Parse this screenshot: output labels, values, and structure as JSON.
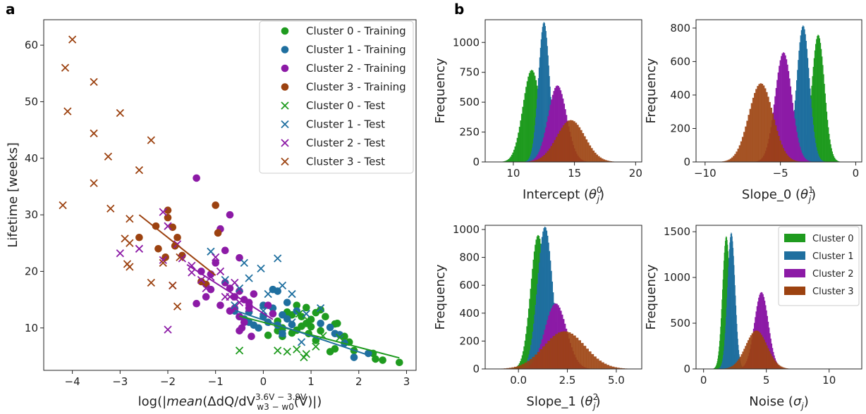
{
  "colors": {
    "c0": "#1f9b1f",
    "c1": "#1f6f9f",
    "c2": "#8c1aa6",
    "c3": "#9c4210"
  },
  "chart_data": [
    {
      "panel": "a",
      "type": "scatter",
      "xlabel": "log(|mean(ΔdQ/dV(V))|)",
      "xlabel_parts": {
        "pre": "log(|",
        "mean": "mean",
        "mid": "(ΔdQ/dV",
        "sup": "3.6V − 3.9V",
        "sub": "w3 − w0",
        "post": "(V)|)"
      },
      "ylabel": "Lifetime [weeks]",
      "xlim": [
        -4.6,
        3.2
      ],
      "ylim": [
        2.5,
        64.5
      ],
      "xticks": [
        -4,
        -3,
        -2,
        -1,
        0,
        1,
        2,
        3
      ],
      "xtick_labels": [
        "−4",
        "−3",
        "−2",
        "−1",
        "0",
        "1",
        "2",
        "3"
      ],
      "yticks": [
        10,
        20,
        30,
        40,
        50,
        60
      ],
      "legend_position": "top-right",
      "series": [
        {
          "name": "Cluster 0 - Training",
          "marker": "o",
          "color_key": "c0",
          "points": [
            [
              0.1,
              8.7
            ],
            [
              0.3,
              9.5
            ],
            [
              0.4,
              8.5
            ],
            [
              0.6,
              9.1
            ],
            [
              0.7,
              9.6
            ],
            [
              0.8,
              10.3
            ],
            [
              0.9,
              10.8
            ],
            [
              1.0,
              11.5
            ],
            [
              0.8,
              12.0
            ],
            [
              0.6,
              12.3
            ],
            [
              0.5,
              12.8
            ],
            [
              1.1,
              12.7
            ],
            [
              1.2,
              13.2
            ],
            [
              0.9,
              13.6
            ],
            [
              0.7,
              14.0
            ],
            [
              1.3,
              12.0
            ],
            [
              1.5,
              10.7
            ],
            [
              1.55,
              10.8
            ],
            [
              1.7,
              8.5
            ],
            [
              1.8,
              7.5
            ],
            [
              1.9,
              6.0
            ],
            [
              2.3,
              5.5
            ],
            [
              2.35,
              4.5
            ],
            [
              2.5,
              4.3
            ],
            [
              2.85,
              3.9
            ],
            [
              1.4,
              5.8
            ],
            [
              1.5,
              6.3
            ],
            [
              1.2,
              9.5
            ],
            [
              0.4,
              10.0
            ],
            [
              0.3,
              11.2
            ],
            [
              0.95,
              9.0
            ],
            [
              1.1,
              7.8
            ],
            [
              1.0,
              10.2
            ]
          ]
        },
        {
          "name": "Cluster 1 - Training",
          "marker": "o",
          "color_key": "c1",
          "points": [
            [
              -0.6,
              13.0
            ],
            [
              -0.5,
              12.0
            ],
            [
              -0.4,
              11.6
            ],
            [
              -0.3,
              11.0
            ],
            [
              -0.2,
              10.5
            ],
            [
              -0.1,
              10.0
            ],
            [
              0.0,
              12.0
            ],
            [
              0.1,
              11.0
            ],
            [
              0.2,
              13.5
            ],
            [
              0.3,
              10.5
            ],
            [
              0.4,
              12.3
            ],
            [
              0.5,
              11.6
            ],
            [
              0.6,
              10.6
            ],
            [
              0.7,
              13.0
            ],
            [
              0.2,
              16.8
            ],
            [
              0.3,
              16.5
            ],
            [
              0.5,
              14.5
            ],
            [
              1.2,
              10.8
            ],
            [
              1.4,
              10.1
            ],
            [
              1.5,
              9.0
            ],
            [
              1.6,
              8.8
            ],
            [
              1.7,
              7.3
            ],
            [
              1.9,
              4.8
            ],
            [
              2.2,
              5.5
            ],
            [
              -0.3,
              12.8
            ],
            [
              0.0,
              14.0
            ],
            [
              0.4,
              9.0
            ]
          ]
        },
        {
          "name": "Cluster 2 - Training",
          "marker": "o",
          "color_key": "c2",
          "points": [
            [
              -1.4,
              36.5
            ],
            [
              -0.7,
              30.0
            ],
            [
              -0.9,
              27.5
            ],
            [
              -0.8,
              23.7
            ],
            [
              -0.5,
              22.4
            ],
            [
              -1.0,
              21.5
            ],
            [
              -1.3,
              20.0
            ],
            [
              -1.1,
              19.5
            ],
            [
              -0.8,
              18.0
            ],
            [
              -0.7,
              17.0
            ],
            [
              -0.5,
              16.5
            ],
            [
              -0.6,
              15.5
            ],
            [
              -0.4,
              15.0
            ],
            [
              -0.3,
              14.5
            ],
            [
              -0.9,
              14.0
            ],
            [
              -0.6,
              13.5
            ],
            [
              -0.5,
              12.0
            ],
            [
              -0.4,
              11.0
            ],
            [
              -0.45,
              10.0
            ],
            [
              -0.5,
              9.5
            ],
            [
              -0.25,
              8.5
            ],
            [
              0.1,
              14.0
            ],
            [
              0.2,
              12.5
            ],
            [
              -1.4,
              14.3
            ],
            [
              -1.2,
              15.5
            ],
            [
              -1.1,
              16.8
            ],
            [
              -0.7,
              13.0
            ],
            [
              -0.3,
              13.5
            ],
            [
              -0.2,
              16.0
            ]
          ]
        },
        {
          "name": "Cluster 3 - Training",
          "marker": "o",
          "color_key": "c3",
          "points": [
            [
              -2.6,
              26.0
            ],
            [
              -2.25,
              28.0
            ],
            [
              -2.2,
              24.0
            ],
            [
              -2.0,
              30.8
            ],
            [
              -2.0,
              29.5
            ],
            [
              -1.9,
              27.8
            ],
            [
              -1.8,
              26.0
            ],
            [
              -1.7,
              22.8
            ],
            [
              -1.3,
              18.2
            ],
            [
              -1.2,
              17.7
            ],
            [
              -1.0,
              31.7
            ],
            [
              -0.95,
              26.8
            ],
            [
              -2.05,
              22.5
            ],
            [
              -1.85,
              24.5
            ]
          ]
        },
        {
          "name": "Cluster 0 - Test",
          "marker": "x",
          "color_key": "c0",
          "points": [
            [
              -0.5,
              6.0
            ],
            [
              0.3,
              6.0
            ],
            [
              0.5,
              5.8
            ],
            [
              0.7,
              6.2
            ],
            [
              0.9,
              5.4
            ],
            [
              0.85,
              4.8
            ],
            [
              1.1,
              6.7
            ],
            [
              1.25,
              8.6
            ],
            [
              1.6,
              8.3
            ],
            [
              0.75,
              12.5
            ],
            [
              0.95,
              11.2
            ]
          ]
        },
        {
          "name": "Cluster 1 - Test",
          "marker": "x",
          "color_key": "c1",
          "points": [
            [
              -1.1,
              23.5
            ],
            [
              -0.4,
              21.5
            ],
            [
              -0.05,
              20.5
            ],
            [
              0.3,
              22.3
            ],
            [
              -0.3,
              18.8
            ],
            [
              -0.8,
              18.5
            ],
            [
              0.4,
              17.5
            ],
            [
              0.6,
              16.0
            ],
            [
              -0.6,
              14.0
            ],
            [
              -0.5,
              17.0
            ],
            [
              0.1,
              16.0
            ],
            [
              0.9,
              12.5
            ],
            [
              0.4,
              9.0
            ],
            [
              0.8,
              7.5
            ],
            [
              1.2,
              13.5
            ],
            [
              0.0,
              13.0
            ],
            [
              0.6,
              11.0
            ]
          ]
        },
        {
          "name": "Cluster 2 - Test",
          "marker": "x",
          "color_key": "c2",
          "points": [
            [
              -3.0,
              23.2
            ],
            [
              -2.6,
              24.0
            ],
            [
              -2.1,
              30.5
            ],
            [
              -2.0,
              28.0
            ],
            [
              -1.8,
              24.8
            ],
            [
              -1.7,
              22.3
            ],
            [
              -1.5,
              19.8
            ],
            [
              -1.3,
              18.5
            ],
            [
              -1.2,
              17.0
            ],
            [
              -1.1,
              19.0
            ],
            [
              -0.9,
              20.0
            ],
            [
              -0.7,
              15.5
            ],
            [
              -0.5,
              14.5
            ],
            [
              -0.3,
              13.5
            ],
            [
              -2.1,
              22.0
            ],
            [
              -1.9,
              17.5
            ],
            [
              -2.0,
              9.7
            ],
            [
              -1.0,
              22.5
            ],
            [
              -0.6,
              18.0
            ],
            [
              -0.8,
              15.5
            ],
            [
              -1.5,
              21.0
            ]
          ]
        },
        {
          "name": "Cluster 3 - Test",
          "marker": "x",
          "color_key": "c3",
          "points": [
            [
              -4.0,
              61.0
            ],
            [
              -4.15,
              56.0
            ],
            [
              -3.55,
              53.5
            ],
            [
              -4.1,
              48.3
            ],
            [
              -3.0,
              48.0
            ],
            [
              -3.55,
              44.4
            ],
            [
              -2.35,
              43.2
            ],
            [
              -3.25,
              40.3
            ],
            [
              -3.55,
              35.6
            ],
            [
              -2.6,
              37.9
            ],
            [
              -4.2,
              31.7
            ],
            [
              -3.2,
              31.1
            ],
            [
              -2.8,
              29.3
            ],
            [
              -2.9,
              25.8
            ],
            [
              -2.8,
              25.0
            ],
            [
              -2.85,
              21.3
            ],
            [
              -2.8,
              20.8
            ],
            [
              -2.35,
              18.0
            ],
            [
              -2.1,
              21.5
            ],
            [
              -1.75,
              22.5
            ],
            [
              -1.8,
              13.8
            ],
            [
              -1.9,
              17.5
            ]
          ]
        }
      ],
      "fit_lines": [
        {
          "color_key": "c0",
          "points": [
            [
              -0.5,
              12.1
            ],
            [
              2.85,
              4.7
            ]
          ]
        },
        {
          "color_key": "c1",
          "points": [
            [
              -0.6,
              13.1
            ],
            [
              2.2,
              5.2
            ]
          ]
        },
        {
          "color_key": "c2",
          "points": [
            [
              -1.6,
              21.2
            ],
            [
              0.2,
              11.5
            ]
          ]
        },
        {
          "color_key": "c3",
          "points": [
            [
              -2.6,
              30.0
            ],
            [
              -1.0,
              19.3
            ]
          ]
        }
      ]
    },
    {
      "panel": "b",
      "type": "histogram",
      "legend": [
        "Cluster 0",
        "Cluster 1",
        "Cluster 2",
        "Cluster 3"
      ],
      "legend_position": "top-right (Noise panel)",
      "ylabel": "Frequency",
      "subplots": [
        {
          "xlabel": "Intercept",
          "sym": "θ",
          "sub": "j",
          "sup": "0",
          "xlim": [
            7.7,
            20.5
          ],
          "ylim": [
            0,
            1190
          ],
          "xticks": [
            10,
            15,
            20
          ],
          "yticks": [
            0,
            250,
            500,
            750,
            1000
          ],
          "clusters": [
            {
              "mean": 11.5,
              "std": 0.72,
              "peak": 770
            },
            {
              "mean": 12.5,
              "std": 0.45,
              "peak": 1170
            },
            {
              "mean": 13.6,
              "std": 0.75,
              "peak": 640
            },
            {
              "mean": 14.7,
              "std": 1.15,
              "peak": 350
            }
          ]
        },
        {
          "xlabel": "Slope_0",
          "sym": "θ",
          "sub": "j",
          "sup": "1",
          "xlim": [
            -10.6,
            0.4
          ],
          "ylim": [
            0,
            850
          ],
          "xticks": [
            -10,
            -5,
            0
          ],
          "xtick_labels": [
            "−10",
            "−5",
            "0"
          ],
          "yticks": [
            0,
            200,
            400,
            600,
            800
          ],
          "clusters": [
            {
              "mean": -2.5,
              "std": 0.42,
              "peak": 760
            },
            {
              "mean": -3.5,
              "std": 0.42,
              "peak": 815
            },
            {
              "mean": -4.8,
              "std": 0.55,
              "peak": 655
            },
            {
              "mean": -6.3,
              "std": 0.8,
              "peak": 470
            }
          ]
        },
        {
          "xlabel": "Slope_1",
          "sym": "θ",
          "sub": "j",
          "sup": "2",
          "xlim": [
            -1.7,
            6.3
          ],
          "ylim": [
            0,
            1030
          ],
          "xticks": [
            0.0,
            2.5,
            5.0
          ],
          "xtick_labels": [
            "0.0",
            "2.5",
            "5.0"
          ],
          "yticks": [
            0,
            200,
            400,
            600,
            800,
            1000
          ],
          "clusters": [
            {
              "mean": 1.0,
              "std": 0.38,
              "peak": 960
            },
            {
              "mean": 1.35,
              "std": 0.38,
              "peak": 1020
            },
            {
              "mean": 1.9,
              "std": 0.55,
              "peak": 470
            },
            {
              "mean": 2.35,
              "std": 1.05,
              "peak": 270
            }
          ]
        },
        {
          "xlabel": "Noise",
          "sym": "σ",
          "sub": "j",
          "sup": "",
          "xlim": [
            -0.6,
            12.6
          ],
          "ylim": [
            0,
            1570
          ],
          "xticks": [
            0,
            5,
            10
          ],
          "yticks": [
            0,
            500,
            1000,
            1500
          ],
          "clusters": [
            {
              "mean": 1.8,
              "std": 0.3,
              "peak": 1450
            },
            {
              "mean": 2.2,
              "std": 0.3,
              "peak": 1490
            },
            {
              "mean": 4.6,
              "std": 0.55,
              "peak": 840
            },
            {
              "mean": 4.2,
              "std": 0.85,
              "peak": 420
            }
          ]
        }
      ]
    }
  ]
}
